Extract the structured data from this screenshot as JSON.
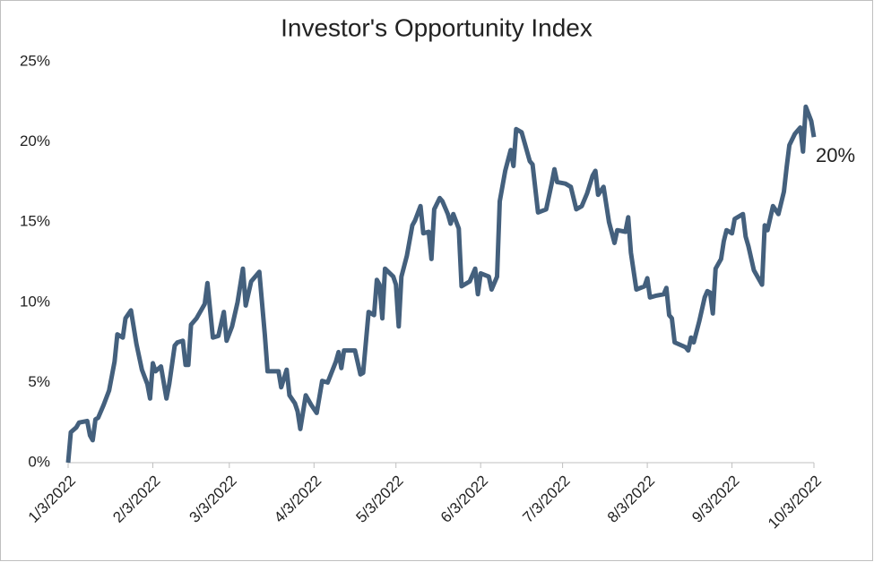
{
  "chart_data": {
    "type": "line",
    "title": "Investor's Opportunity Index",
    "xlim": [
      "2022-01-03",
      "2022-10-03"
    ],
    "xticks": [
      {
        "value": "2022-01-03",
        "label": "1/3/2022"
      },
      {
        "value": "2022-02-03",
        "label": "2/3/2022"
      },
      {
        "value": "2022-03-03",
        "label": "3/3/2022"
      },
      {
        "value": "2022-04-03",
        "label": "4/3/2022"
      },
      {
        "value": "2022-05-03",
        "label": "5/3/2022"
      },
      {
        "value": "2022-06-03",
        "label": "6/3/2022"
      },
      {
        "value": "2022-07-03",
        "label": "7/3/2022"
      },
      {
        "value": "2022-08-03",
        "label": "8/3/2022"
      },
      {
        "value": "2022-09-03",
        "label": "9/3/2022"
      },
      {
        "value": "2022-10-03",
        "label": "10/3/2022"
      }
    ],
    "ylim": [
      0,
      25
    ],
    "yticks": [
      {
        "value": 0,
        "label": "0%"
      },
      {
        "value": 5,
        "label": "5%"
      },
      {
        "value": 10,
        "label": "10%"
      },
      {
        "value": 15,
        "label": "15%"
      },
      {
        "value": 20,
        "label": "20%"
      },
      {
        "value": 25,
        "label": "25%"
      }
    ],
    "grid": false,
    "x": [
      "2022-01-03",
      "2022-01-04",
      "2022-01-06",
      "2022-01-07",
      "2022-01-10",
      "2022-01-11",
      "2022-01-12",
      "2022-01-13",
      "2022-01-14",
      "2022-01-16",
      "2022-01-18",
      "2022-01-20",
      "2022-01-21",
      "2022-01-23",
      "2022-01-24",
      "2022-01-26",
      "2022-01-28",
      "2022-01-30",
      "2022-02-01",
      "2022-02-02",
      "2022-02-03",
      "2022-02-04",
      "2022-02-06",
      "2022-02-08",
      "2022-02-09",
      "2022-02-11",
      "2022-02-12",
      "2022-02-14",
      "2022-02-15",
      "2022-02-16",
      "2022-02-17",
      "2022-02-19",
      "2022-02-22",
      "2022-02-23",
      "2022-02-25",
      "2022-02-27",
      "2022-03-01",
      "2022-03-02",
      "2022-03-04",
      "2022-03-06",
      "2022-03-08",
      "2022-03-09",
      "2022-03-11",
      "2022-03-14",
      "2022-03-16",
      "2022-03-17",
      "2022-03-21",
      "2022-03-22",
      "2022-03-24",
      "2022-03-25",
      "2022-03-27",
      "2022-03-28",
      "2022-03-29",
      "2022-03-31",
      "2022-04-02",
      "2022-04-04",
      "2022-04-06",
      "2022-04-08",
      "2022-04-11",
      "2022-04-12",
      "2022-04-13",
      "2022-04-14",
      "2022-04-18",
      "2022-04-20",
      "2022-04-21",
      "2022-04-23",
      "2022-04-25",
      "2022-04-26",
      "2022-04-27",
      "2022-04-28",
      "2022-04-29",
      "2022-05-02",
      "2022-05-03",
      "2022-05-04",
      "2022-05-05",
      "2022-05-07",
      "2022-05-09",
      "2022-05-10",
      "2022-05-12",
      "2022-05-13",
      "2022-05-15",
      "2022-05-16",
      "2022-05-17",
      "2022-05-19",
      "2022-05-20",
      "2022-05-22",
      "2022-05-23",
      "2022-05-24",
      "2022-05-26",
      "2022-05-27",
      "2022-05-30",
      "2022-06-01",
      "2022-06-02",
      "2022-06-03",
      "2022-06-06",
      "2022-06-07",
      "2022-06-09",
      "2022-06-10",
      "2022-06-12",
      "2022-06-14",
      "2022-06-15",
      "2022-06-16",
      "2022-06-18",
      "2022-06-21",
      "2022-06-22",
      "2022-06-24",
      "2022-06-27",
      "2022-06-29",
      "2022-06-30",
      "2022-07-01",
      "2022-07-04",
      "2022-07-06",
      "2022-07-08",
      "2022-07-10",
      "2022-07-12",
      "2022-07-14",
      "2022-07-15",
      "2022-07-16",
      "2022-07-18",
      "2022-07-20",
      "2022-07-22",
      "2022-07-23",
      "2022-07-26",
      "2022-07-27",
      "2022-07-28",
      "2022-07-30",
      "2022-08-02",
      "2022-08-03",
      "2022-08-04",
      "2022-08-06",
      "2022-08-09",
      "2022-08-10",
      "2022-08-11",
      "2022-08-12",
      "2022-08-13",
      "2022-08-17",
      "2022-08-18",
      "2022-08-19",
      "2022-08-20",
      "2022-08-22",
      "2022-08-24",
      "2022-08-25",
      "2022-08-26",
      "2022-08-27",
      "2022-08-28",
      "2022-08-30",
      "2022-08-31",
      "2022-09-01",
      "2022-09-03",
      "2022-09-04",
      "2022-09-07",
      "2022-09-08",
      "2022-09-09",
      "2022-09-11",
      "2022-09-14",
      "2022-09-15",
      "2022-09-16",
      "2022-09-18",
      "2022-09-20",
      "2022-09-22",
      "2022-09-23",
      "2022-09-24",
      "2022-09-26",
      "2022-09-28",
      "2022-09-29",
      "2022-09-30",
      "2022-10-02",
      "2022-10-03"
    ],
    "series": [
      {
        "color": "#44607d",
        "values": [
          0,
          1.9,
          2.2,
          2.5,
          2.6,
          1.7,
          1.4,
          2.7,
          2.8,
          3.6,
          4.5,
          6.3,
          8.0,
          7.8,
          9.0,
          9.5,
          7.4,
          5.8,
          4.9,
          4.0,
          6.2,
          5.7,
          6.0,
          4.0,
          4.9,
          7.3,
          7.5,
          7.6,
          6.1,
          6.1,
          8.6,
          9.0,
          9.9,
          11.2,
          7.8,
          7.9,
          9.4,
          7.6,
          8.5,
          10.0,
          12.1,
          9.8,
          11.3,
          11.9,
          8.0,
          5.7,
          5.7,
          4.7,
          5.8,
          4.2,
          3.7,
          3.2,
          2.1,
          4.2,
          3.6,
          3.1,
          5.1,
          5.0,
          6.3,
          6.9,
          5.9,
          7.0,
          7.0,
          5.5,
          5.6,
          9.4,
          9.2,
          11.4,
          11.1,
          9.0,
          12.1,
          11.6,
          11.1,
          8.5,
          11.6,
          12.9,
          14.8,
          15.1,
          16.0,
          14.3,
          14.4,
          12.7,
          15.8,
          16.5,
          16.3,
          15.5,
          14.9,
          15.5,
          14.6,
          11.0,
          11.3,
          12.1,
          10.5,
          11.8,
          11.6,
          10.8,
          11.6,
          16.3,
          18.2,
          19.5,
          18.5,
          20.8,
          20.6,
          18.8,
          18.6,
          15.6,
          15.8,
          17.4,
          18.3,
          17.5,
          17.4,
          17.2,
          15.8,
          16.0,
          16.8,
          17.9,
          18.2,
          16.7,
          17.2,
          15.0,
          13.7,
          14.5,
          14.4,
          15.3,
          13.1,
          10.8,
          11.0,
          11.5,
          10.3,
          10.4,
          10.5,
          10.9,
          9.2,
          9.0,
          7.5,
          7.2,
          7.0,
          7.8,
          7.5,
          8.8,
          10.3,
          10.7,
          10.6,
          9.3,
          12.1,
          12.7,
          13.8,
          14.5,
          14.3,
          15.2,
          15.5,
          14.1,
          13.5,
          12.0,
          11.1,
          14.8,
          14.5,
          16.0,
          15.5,
          16.9,
          18.4,
          19.8,
          20.5,
          20.9,
          19.4,
          22.2,
          21.3,
          20.3
        ],
        "value_labels": [
          null,
          null,
          null,
          null,
          null,
          null,
          null,
          null,
          null,
          null,
          null,
          null,
          null,
          null,
          null,
          null,
          null,
          null,
          null,
          null,
          null,
          null,
          null,
          null,
          null,
          null,
          null,
          null,
          null,
          null,
          null,
          null,
          null,
          null,
          null,
          null,
          null,
          null,
          null,
          null,
          null,
          null,
          null,
          null,
          null,
          null,
          null,
          null,
          null,
          null,
          null,
          null,
          null,
          null,
          null,
          null,
          null,
          null,
          null,
          null,
          null,
          null,
          null,
          null,
          null,
          null,
          null,
          null,
          null,
          null,
          null,
          null,
          null,
          null,
          null,
          null,
          null,
          null,
          null,
          null,
          null,
          null,
          null,
          null,
          null,
          null,
          null,
          null,
          null,
          null,
          null,
          null,
          null,
          null,
          null,
          null,
          null,
          null,
          null,
          null,
          null,
          null,
          null,
          null,
          null,
          null,
          null,
          null,
          null,
          null,
          null,
          null,
          null,
          null,
          null,
          null,
          null,
          null,
          null,
          null,
          null,
          null,
          null,
          null,
          null,
          null,
          null,
          null,
          null,
          null,
          null,
          null,
          null,
          null,
          null,
          null,
          null,
          null,
          null,
          null,
          null,
          null,
          null,
          null,
          null,
          null,
          null,
          null,
          null,
          null,
          null,
          null,
          null,
          null,
          null,
          null,
          null,
          null,
          null,
          null,
          null,
          null,
          null,
          null,
          null,
          null,
          null,
          "20%"
        ]
      }
    ]
  }
}
